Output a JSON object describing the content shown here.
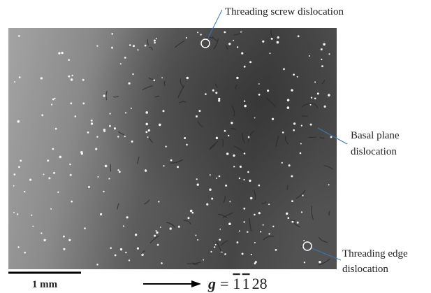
{
  "annotations": {
    "screw": {
      "lines": [
        "Threading screw dislocation"
      ]
    },
    "basal": {
      "lines": [
        "Basal plane",
        "dislocation"
      ]
    },
    "edge": {
      "lines": [
        "Threading edge",
        "dislocation"
      ]
    }
  },
  "scale_bar": {
    "label": "1 mm"
  },
  "diffraction_vector": {
    "symbol": "g",
    "equals": "=",
    "indices": [
      {
        "text": "1",
        "bar": true
      },
      {
        "text": "1",
        "bar": true
      },
      {
        "text": "28",
        "bar": false
      }
    ]
  }
}
